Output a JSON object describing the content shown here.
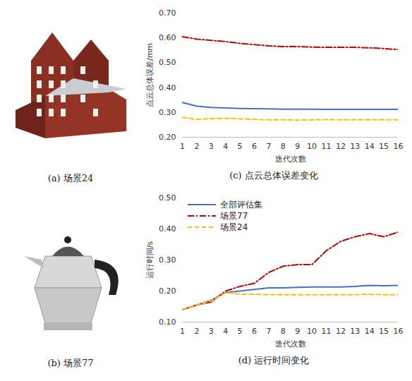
{
  "chart_data": [
    {
      "type": "image",
      "title": "(a) 场景24"
    },
    {
      "type": "line",
      "title": "(c) 点云总体误差变化",
      "x_label": "迭代次数",
      "y_label": "点云总体误差/mm",
      "x": [
        1,
        2,
        3,
        4,
        5,
        6,
        7,
        8,
        9,
        10,
        11,
        12,
        13,
        14,
        15,
        16
      ],
      "xlim": [
        1,
        16
      ],
      "xticks": [
        1,
        2,
        3,
        4,
        5,
        6,
        7,
        8,
        9,
        10,
        11,
        12,
        13,
        14,
        15,
        16
      ],
      "ylim": [
        0.2,
        0.7
      ],
      "yticks": [
        {
          "value": 0.2,
          "label": "0.20"
        },
        {
          "value": 0.3,
          "label": "0.30"
        },
        {
          "value": 0.4,
          "label": "0.40"
        },
        {
          "value": 0.5,
          "label": "0.50"
        },
        {
          "value": 0.6,
          "label": "0.60"
        },
        {
          "value": 0.7,
          "label": "0.70"
        }
      ],
      "grid": false,
      "series": [
        {
          "color": "#4472c4",
          "line_style": "solid",
          "values": [
            0.34,
            0.325,
            0.32,
            0.318,
            0.316,
            0.315,
            0.314,
            0.313,
            0.313,
            0.313,
            0.312,
            0.312,
            0.312,
            0.312,
            0.312,
            0.312
          ]
        },
        {
          "color": "#c00000",
          "line_style": "dashdot",
          "values": [
            0.605,
            0.595,
            0.59,
            0.585,
            0.578,
            0.573,
            0.568,
            0.565,
            0.565,
            0.563,
            0.562,
            0.562,
            0.562,
            0.56,
            0.557,
            0.553
          ]
        },
        {
          "color": "#ffc000",
          "line_style": "dashed",
          "values": [
            0.28,
            0.272,
            0.275,
            0.276,
            0.274,
            0.272,
            0.27,
            0.27,
            0.269,
            0.27,
            0.271,
            0.27,
            0.27,
            0.27,
            0.27,
            0.27
          ]
        }
      ]
    },
    {
      "type": "image",
      "title": "(b) 场景77"
    },
    {
      "type": "line",
      "title": "(d) 运行时间变化",
      "x_label": "迭代次数",
      "y_label": "运行时间/s",
      "x": [
        1,
        2,
        3,
        4,
        5,
        6,
        7,
        8,
        9,
        10,
        11,
        12,
        13,
        14,
        15,
        16
      ],
      "xlim": [
        1,
        16
      ],
      "xticks": [
        1,
        2,
        3,
        4,
        5,
        6,
        7,
        8,
        9,
        10,
        11,
        12,
        13,
        14,
        15,
        16
      ],
      "ylim": [
        0.1,
        0.5
      ],
      "yticks": [
        {
          "value": 0.1,
          "label": "0.10"
        },
        {
          "value": 0.2,
          "label": "0.20"
        },
        {
          "value": 0.3,
          "label": "0.30"
        },
        {
          "value": 0.4,
          "label": "0.40"
        },
        {
          "value": 0.5,
          "label": "0.50"
        }
      ],
      "grid": false,
      "legend": "top-left",
      "series": [
        {
          "name": "全部评估集",
          "color": "#4472c4",
          "line_style": "solid",
          "values": [
            0.14,
            0.155,
            0.17,
            0.195,
            0.2,
            0.205,
            0.21,
            0.21,
            0.212,
            0.213,
            0.213,
            0.213,
            0.215,
            0.218,
            0.217,
            0.218
          ]
        },
        {
          "name": "场景77",
          "color": "#c00000",
          "line_style": "dashdot",
          "values": [
            0.14,
            0.155,
            0.165,
            0.2,
            0.215,
            0.225,
            0.26,
            0.28,
            0.285,
            0.285,
            0.33,
            0.36,
            0.375,
            0.385,
            0.375,
            0.39
          ]
        },
        {
          "name": "场景24",
          "color": "#ffc000",
          "line_style": "dashed",
          "values": [
            0.14,
            0.155,
            0.168,
            0.195,
            0.19,
            0.19,
            0.188,
            0.188,
            0.188,
            0.188,
            0.188,
            0.188,
            0.188,
            0.19,
            0.188,
            0.188
          ]
        }
      ]
    }
  ]
}
